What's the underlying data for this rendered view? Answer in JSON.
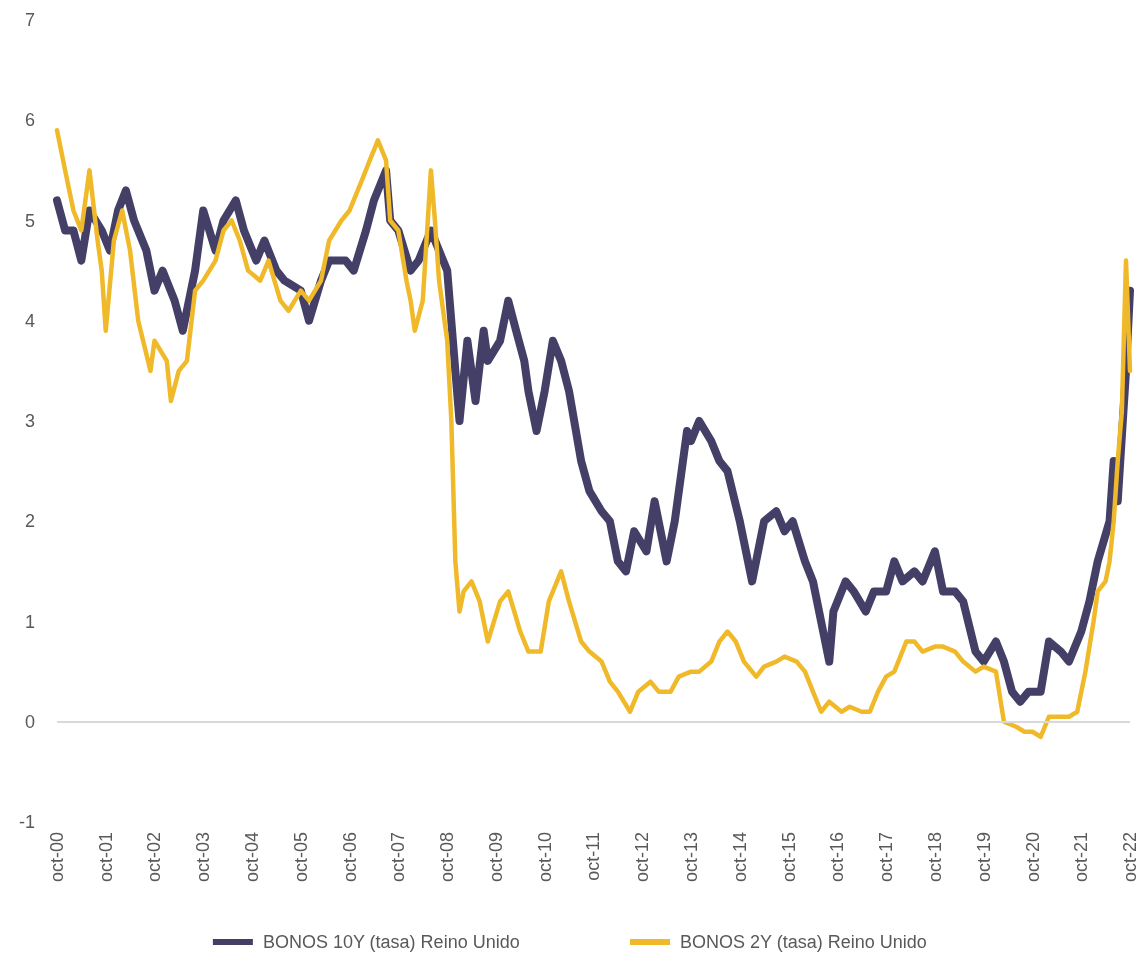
{
  "chart_data": {
    "type": "line",
    "xlim": [
      "2000-10",
      "2022-10"
    ],
    "ylim": [
      -1,
      7
    ],
    "yticks": [
      -1,
      0,
      1,
      2,
      3,
      4,
      5,
      6,
      7
    ],
    "xticks": [
      {
        "value": "2000-10",
        "label": "oct-00"
      },
      {
        "value": "2001-10",
        "label": "oct-01"
      },
      {
        "value": "2002-10",
        "label": "oct-02"
      },
      {
        "value": "2003-10",
        "label": "oct-03"
      },
      {
        "value": "2004-10",
        "label": "oct-04"
      },
      {
        "value": "2005-10",
        "label": "oct-05"
      },
      {
        "value": "2006-10",
        "label": "oct-06"
      },
      {
        "value": "2007-10",
        "label": "oct-07"
      },
      {
        "value": "2008-10",
        "label": "oct-08"
      },
      {
        "value": "2009-10",
        "label": "oct-09"
      },
      {
        "value": "2010-10",
        "label": "oct-10"
      },
      {
        "value": "2011-10",
        "label": "oct-11"
      },
      {
        "value": "2012-10",
        "label": "oct-12"
      },
      {
        "value": "2013-10",
        "label": "oct-13"
      },
      {
        "value": "2014-10",
        "label": "oct-14"
      },
      {
        "value": "2015-10",
        "label": "oct-15"
      },
      {
        "value": "2016-10",
        "label": "oct-16"
      },
      {
        "value": "2017-10",
        "label": "oct-17"
      },
      {
        "value": "2018-10",
        "label": "oct-18"
      },
      {
        "value": "2019-10",
        "label": "oct-19"
      },
      {
        "value": "2020-10",
        "label": "oct-20"
      },
      {
        "value": "2021-10",
        "label": "oct-21"
      },
      {
        "value": "2022-10",
        "label": "oct-22"
      }
    ],
    "grid": false,
    "ref_lines": [
      {
        "axis": "y",
        "value": 0,
        "color": "#d9d9d9",
        "line_style": "solid"
      }
    ],
    "legend": "bottom",
    "marker": "none",
    "line_style": "solid",
    "series": [
      {
        "name": "BONOS 10Y (tasa) Reino Unido",
        "color": "#433f67",
        "x": [
          "2000-10",
          "2000-12",
          "2001-02",
          "2001-04",
          "2001-06",
          "2001-09",
          "2001-11",
          "2002-01",
          "2002-03",
          "2002-05",
          "2002-08",
          "2002-10",
          "2002-12",
          "2003-03",
          "2003-05",
          "2003-08",
          "2003-10",
          "2004-01",
          "2004-03",
          "2004-06",
          "2004-08",
          "2004-11",
          "2005-01",
          "2005-04",
          "2005-06",
          "2005-10",
          "2005-12",
          "2006-03",
          "2006-05",
          "2006-09",
          "2006-11",
          "2007-02",
          "2007-04",
          "2007-07",
          "2007-08",
          "2007-10",
          "2008-01",
          "2008-03",
          "2008-06",
          "2008-08",
          "2008-10",
          "2008-12",
          "2009-01",
          "2009-03",
          "2009-05",
          "2009-07",
          "2009-08",
          "2009-11",
          "2010-01",
          "2010-03",
          "2010-05",
          "2010-06",
          "2010-08",
          "2010-10",
          "2010-12",
          "2011-02",
          "2011-04",
          "2011-07",
          "2011-09",
          "2011-12",
          "2012-02",
          "2012-04",
          "2012-06",
          "2012-08",
          "2012-11",
          "2013-01",
          "2013-04",
          "2013-06",
          "2013-09",
          "2013-10",
          "2013-12",
          "2014-03",
          "2014-05",
          "2014-07",
          "2014-10",
          "2015-01",
          "2015-04",
          "2015-07",
          "2015-09",
          "2015-11",
          "2016-02",
          "2016-04",
          "2016-06",
          "2016-08",
          "2016-09",
          "2016-12",
          "2017-02",
          "2017-05",
          "2017-07",
          "2017-10",
          "2017-12",
          "2018-02",
          "2018-05",
          "2018-07",
          "2018-10",
          "2018-12",
          "2019-03",
          "2019-05",
          "2019-08",
          "2019-10",
          "2020-01",
          "2020-03",
          "2020-05",
          "2020-07",
          "2020-09",
          "2020-12",
          "2021-02",
          "2021-05",
          "2021-07",
          "2021-10",
          "2021-12",
          "2022-02",
          "2022-05",
          "2022-06",
          "2022-07",
          "2022-09",
          "2022-10"
        ],
        "values": [
          5.2,
          4.9,
          4.9,
          4.6,
          5.1,
          4.9,
          4.7,
          5.1,
          5.3,
          5.0,
          4.7,
          4.3,
          4.5,
          4.2,
          3.9,
          4.5,
          5.1,
          4.7,
          5.0,
          5.2,
          4.9,
          4.6,
          4.8,
          4.5,
          4.4,
          4.3,
          4.0,
          4.4,
          4.6,
          4.6,
          4.5,
          4.9,
          5.2,
          5.5,
          5.0,
          4.9,
          4.5,
          4.6,
          4.9,
          4.7,
          4.5,
          3.5,
          3.0,
          3.8,
          3.2,
          3.9,
          3.6,
          3.8,
          4.2,
          3.9,
          3.6,
          3.3,
          2.9,
          3.3,
          3.8,
          3.6,
          3.3,
          2.6,
          2.3,
          2.1,
          2.0,
          1.6,
          1.5,
          1.9,
          1.7,
          2.2,
          1.6,
          2.0,
          2.9,
          2.8,
          3.0,
          2.8,
          2.6,
          2.5,
          2.0,
          1.4,
          2.0,
          2.1,
          1.9,
          2.0,
          1.6,
          1.4,
          1.0,
          0.6,
          1.1,
          1.4,
          1.3,
          1.1,
          1.3,
          1.3,
          1.6,
          1.4,
          1.5,
          1.4,
          1.7,
          1.3,
          1.3,
          1.2,
          0.7,
          0.6,
          0.8,
          0.6,
          0.3,
          0.2,
          0.3,
          0.3,
          0.8,
          0.7,
          0.6,
          0.9,
          1.2,
          1.6,
          2.0,
          2.6,
          2.2,
          3.5,
          4.3
        ]
      },
      {
        "name": "BONOS 2Y (tasa) Reino Unido",
        "color": "#f0b929",
        "x": [
          "2000-10",
          "2000-12",
          "2001-02",
          "2001-04",
          "2001-06",
          "2001-08",
          "2001-09",
          "2001-10",
          "2001-12",
          "2002-02",
          "2002-04",
          "2002-06",
          "2002-09",
          "2002-10",
          "2003-01",
          "2003-02",
          "2003-04",
          "2003-06",
          "2003-08",
          "2003-10",
          "2004-01",
          "2004-03",
          "2004-05",
          "2004-07",
          "2004-09",
          "2004-12",
          "2005-02",
          "2005-05",
          "2005-07",
          "2005-10",
          "2005-12",
          "2006-03",
          "2006-05",
          "2006-08",
          "2006-10",
          "2007-01",
          "2007-03",
          "2007-05",
          "2007-07",
          "2007-08",
          "2007-10",
          "2007-12",
          "2008-01",
          "2008-02",
          "2008-04",
          "2008-06",
          "2008-07",
          "2008-08",
          "2008-10",
          "2008-11",
          "2008-12",
          "2009-01",
          "2009-02",
          "2009-04",
          "2009-06",
          "2009-08",
          "2009-11",
          "2010-01",
          "2010-04",
          "2010-06",
          "2010-09",
          "2010-11",
          "2011-02",
          "2011-04",
          "2011-07",
          "2011-09",
          "2011-12",
          "2012-02",
          "2012-04",
          "2012-07",
          "2012-09",
          "2012-12",
          "2013-02",
          "2013-05",
          "2013-07",
          "2013-10",
          "2013-12",
          "2014-03",
          "2014-05",
          "2014-07",
          "2014-09",
          "2014-11",
          "2015-02",
          "2015-04",
          "2015-07",
          "2015-09",
          "2015-12",
          "2016-02",
          "2016-04",
          "2016-06",
          "2016-08",
          "2016-11",
          "2017-01",
          "2017-04",
          "2017-06",
          "2017-08",
          "2017-10",
          "2017-12",
          "2018-03",
          "2018-05",
          "2018-07",
          "2018-10",
          "2018-12",
          "2019-03",
          "2019-05",
          "2019-08",
          "2019-10",
          "2020-01",
          "2020-03",
          "2020-06",
          "2020-08",
          "2020-10",
          "2020-12",
          "2021-02",
          "2021-05",
          "2021-07",
          "2021-09",
          "2021-11",
          "2022-01",
          "2022-02",
          "2022-04",
          "2022-05",
          "2022-06",
          "2022-07",
          "2022-08",
          "2022-09",
          "2022-10"
        ],
        "values": [
          5.9,
          5.5,
          5.1,
          4.9,
          5.5,
          4.8,
          4.5,
          3.9,
          4.8,
          5.1,
          4.7,
          4.0,
          3.5,
          3.8,
          3.6,
          3.2,
          3.5,
          3.6,
          4.3,
          4.4,
          4.6,
          4.9,
          5.0,
          4.8,
          4.5,
          4.4,
          4.6,
          4.2,
          4.1,
          4.3,
          4.2,
          4.4,
          4.8,
          5.0,
          5.1,
          5.4,
          5.6,
          5.8,
          5.6,
          5.0,
          4.9,
          4.4,
          4.2,
          3.9,
          4.2,
          5.5,
          5.0,
          4.4,
          3.8,
          3.0,
          1.6,
          1.1,
          1.3,
          1.4,
          1.2,
          0.8,
          1.2,
          1.3,
          0.9,
          0.7,
          0.7,
          1.2,
          1.5,
          1.2,
          0.8,
          0.7,
          0.6,
          0.4,
          0.3,
          0.1,
          0.3,
          0.4,
          0.3,
          0.3,
          0.45,
          0.5,
          0.5,
          0.6,
          0.8,
          0.9,
          0.8,
          0.6,
          0.45,
          0.55,
          0.6,
          0.65,
          0.6,
          0.5,
          0.3,
          0.1,
          0.2,
          0.1,
          0.15,
          0.1,
          0.1,
          0.3,
          0.45,
          0.5,
          0.8,
          0.8,
          0.7,
          0.75,
          0.75,
          0.7,
          0.6,
          0.5,
          0.55,
          0.5,
          0.0,
          -0.05,
          -0.1,
          -0.1,
          -0.15,
          0.05,
          0.05,
          0.05,
          0.1,
          0.5,
          1.0,
          1.3,
          1.4,
          1.6,
          2.0,
          2.6,
          3.1,
          4.6,
          3.5
        ]
      }
    ]
  }
}
